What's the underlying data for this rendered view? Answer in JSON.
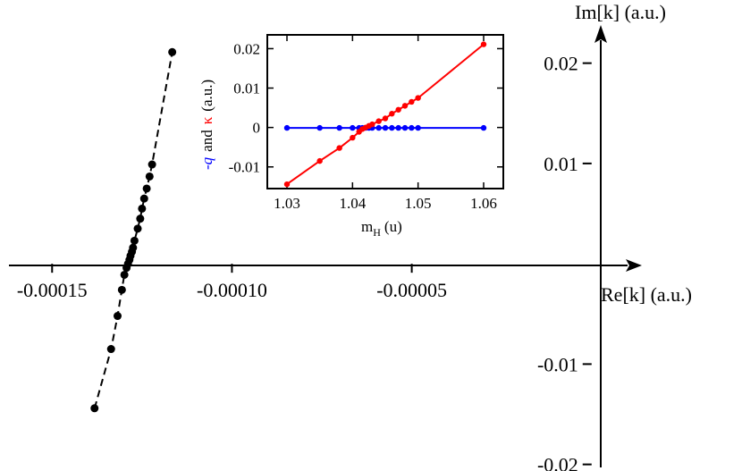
{
  "chart_data": [
    {
      "type": "scatter",
      "xlabel": "Re[k] (a.u.)",
      "ylabel": "Im[k] (a.u.)",
      "xlim": [
        -0.000162,
        1e-05
      ],
      "ylim": [
        -0.0203,
        0.0238
      ],
      "x_ticks": [
        {
          "value": -0.00015,
          "label": "-0.00015"
        },
        {
          "value": -0.0001,
          "label": "-0.00010"
        },
        {
          "value": -5e-05,
          "label": "-0.00005"
        }
      ],
      "y_ticks": [
        {
          "value": 0.02,
          "label": "0.02"
        },
        {
          "value": 0.01,
          "label": "0.01"
        },
        {
          "value": -0.01,
          "label": "-0.01"
        },
        {
          "value": -0.02,
          "label": "-0.02"
        }
      ],
      "line_style": "dashed",
      "color": "#000000",
      "x": [
        -0.0001382,
        -0.0001336,
        -0.0001318,
        -0.0001306,
        -0.0001299,
        -0.0001293,
        -0.0001289,
        -0.0001285,
        -0.0001282,
        -0.0001278,
        -0.0001275,
        -0.0001271,
        -0.0001262,
        -0.0001255,
        -0.000125,
        -0.0001244,
        -0.0001237,
        -0.0001229,
        -0.0001222,
        -0.0001166
      ],
      "y": [
        -0.0144,
        -0.0085,
        -0.0052,
        -0.0026,
        -0.0011,
        -0.0004,
        0.0,
        0.0004,
        0.0008,
        0.0012,
        0.0016,
        0.0023,
        0.0035,
        0.0045,
        0.0055,
        0.0065,
        0.0075,
        0.0087,
        0.0099,
        0.0211
      ]
    },
    {
      "type": "line",
      "xlabel": "m_H (u)",
      "ylabel": "-q and κ (a.u.)",
      "xlim": [
        1.027,
        1.063
      ],
      "ylim": [
        -0.0155,
        0.0235
      ],
      "x_ticks": [
        {
          "value": 1.03,
          "label": "1.03"
        },
        {
          "value": 1.04,
          "label": "1.04"
        },
        {
          "value": 1.05,
          "label": "1.05"
        },
        {
          "value": 1.06,
          "label": "1.06"
        }
      ],
      "y_ticks": [
        {
          "value": 0.02,
          "label": "0.02"
        },
        {
          "value": 0.01,
          "label": "0.01"
        },
        {
          "value": 0,
          "label": "0"
        },
        {
          "value": -0.01,
          "label": "-0.01"
        }
      ],
      "x": [
        1.03,
        1.035,
        1.038,
        1.04,
        1.041,
        1.0415,
        1.042,
        1.0425,
        1.043,
        1.044,
        1.045,
        1.046,
        1.047,
        1.048,
        1.049,
        1.05,
        1.06
      ],
      "series": [
        {
          "name": "-q",
          "color": "#0000ff",
          "values": [
            -0.0001,
            -0.0001,
            -0.0001,
            -0.0001,
            -0.0001,
            -0.0001,
            -0.0001,
            -0.0001,
            -0.0001,
            -0.0001,
            -0.0001,
            -0.0001,
            -0.0001,
            -0.0001,
            -0.0001,
            -0.0001,
            -0.0001
          ]
        },
        {
          "name": "κ",
          "color": "#ff0000",
          "values": [
            -0.0144,
            -0.0085,
            -0.0052,
            -0.0026,
            -0.0011,
            -0.0004,
            0.0,
            0.0004,
            0.0008,
            0.0016,
            0.0023,
            0.0035,
            0.0045,
            0.0055,
            0.0065,
            0.0075,
            0.0211
          ]
        }
      ]
    }
  ],
  "inset_labels": {
    "minus_q": "-q",
    "and": "and",
    "kappa": "κ",
    "units": "(a.u.)",
    "m": "m",
    "m_sub": "H",
    "m_units": "(u)"
  }
}
